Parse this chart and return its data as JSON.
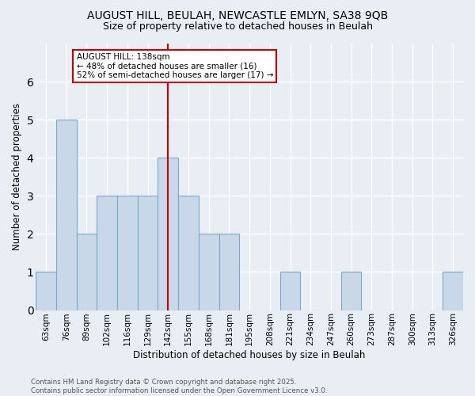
{
  "title_line1": "AUGUST HILL, BEULAH, NEWCASTLE EMLYN, SA38 9QB",
  "title_line2": "Size of property relative to detached houses in Beulah",
  "xlabel": "Distribution of detached houses by size in Beulah",
  "ylabel": "Number of detached properties",
  "bin_labels": [
    "63sqm",
    "76sqm",
    "89sqm",
    "102sqm",
    "116sqm",
    "129sqm",
    "142sqm",
    "155sqm",
    "168sqm",
    "181sqm",
    "195sqm",
    "208sqm",
    "221sqm",
    "234sqm",
    "247sqm",
    "260sqm",
    "273sqm",
    "287sqm",
    "300sqm",
    "313sqm",
    "326sqm"
  ],
  "bar_heights": [
    1,
    5,
    2,
    3,
    3,
    3,
    4,
    3,
    2,
    2,
    0,
    0,
    1,
    0,
    0,
    1,
    0,
    0,
    0,
    0,
    1
  ],
  "bar_color": "#c8d8e8",
  "bar_edge_color": "#7aaac8",
  "vline_x": 6.0,
  "vline_color": "#cc0000",
  "annotation_text": "AUGUST HILL: 138sqm\n← 48% of detached houses are smaller (16)\n52% of semi-detached houses are larger (17) →",
  "annotation_box_color": "#ffffff",
  "annotation_box_edge_color": "#cc0000",
  "ylim": [
    0,
    7
  ],
  "yticks": [
    0,
    1,
    2,
    3,
    4,
    5,
    6
  ],
  "background_color": "#e8eef4",
  "grid_color": "#ffffff",
  "footer_text": "Contains HM Land Registry data © Crown copyright and database right 2025.\nContains public sector information licensed under the Open Government Licence v3.0."
}
